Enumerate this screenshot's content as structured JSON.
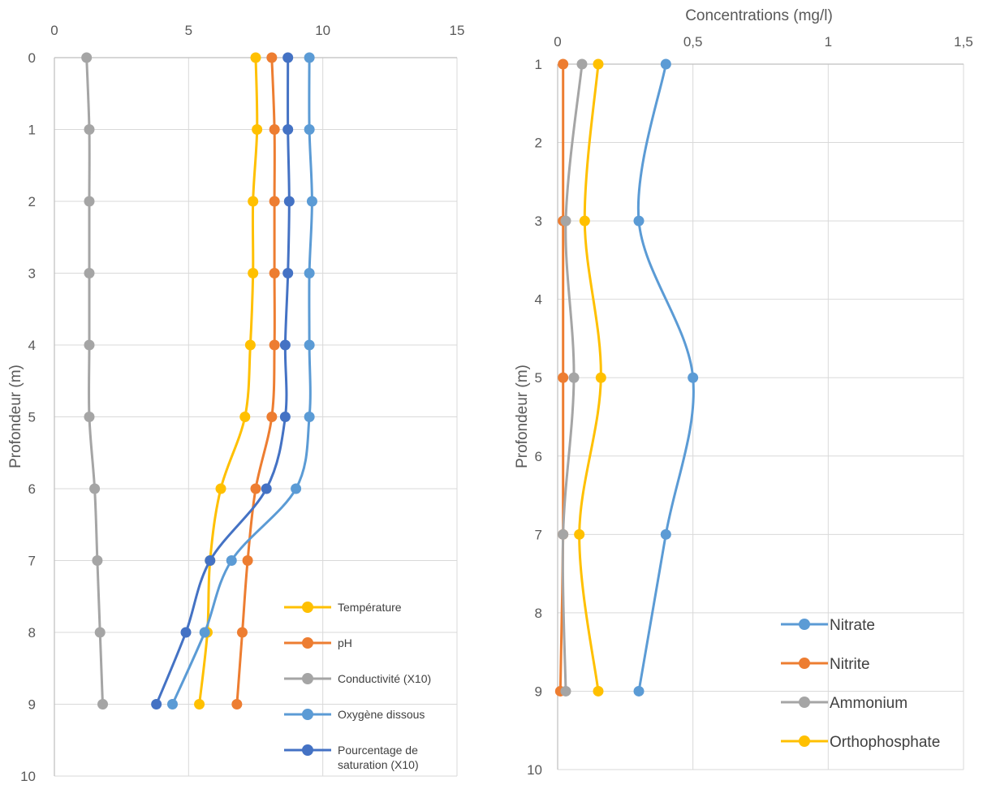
{
  "chart_data": [
    {
      "type": "line",
      "title": "",
      "xlabel": "",
      "ylabel": "Profondeur (m)",
      "xlim": [
        0,
        15
      ],
      "ylim": [
        0,
        10
      ],
      "y_reversed": true,
      "x_axis_position": "top",
      "x_ticks": [
        "0",
        "5",
        "10",
        "15"
      ],
      "y_ticks": [
        "0",
        "1",
        "2",
        "3",
        "4",
        "5",
        "6",
        "7",
        "8",
        "9",
        "10"
      ],
      "grid": true,
      "smooth": true,
      "legend_position": "bottom-right",
      "series": [
        {
          "name": "Température",
          "color": "#FFC000",
          "x": [
            7.5,
            7.55,
            7.4,
            7.4,
            7.3,
            7.1,
            6.2,
            5.8,
            5.7,
            5.4
          ],
          "y": [
            0,
            1,
            2,
            3,
            4,
            5,
            6,
            7,
            8,
            9
          ]
        },
        {
          "name": "pH",
          "color": "#ED7D31",
          "x": [
            8.1,
            8.2,
            8.2,
            8.2,
            8.2,
            8.1,
            7.5,
            7.2,
            7.0,
            6.8
          ],
          "y": [
            0,
            1,
            2,
            3,
            4,
            5,
            6,
            7,
            8,
            9
          ]
        },
        {
          "name": "Conductivité (X10)",
          "color": "#A5A5A5",
          "x": [
            1.2,
            1.3,
            1.3,
            1.3,
            1.3,
            1.3,
            1.5,
            1.6,
            1.7,
            1.8
          ],
          "y": [
            0,
            1,
            2,
            3,
            4,
            5,
            6,
            7,
            8,
            9
          ]
        },
        {
          "name": "Oxygène dissous",
          "color": "#5B9BD5",
          "x": [
            9.5,
            9.5,
            9.6,
            9.5,
            9.5,
            9.5,
            9.0,
            6.6,
            5.6,
            4.4
          ],
          "y": [
            0,
            1,
            2,
            3,
            4,
            5,
            6,
            7,
            8,
            9
          ]
        },
        {
          "name": "Pourcentage de saturation (X10)",
          "name_lines": [
            "Pourcentage de",
            "saturation (X10)"
          ],
          "color": "#4472C4",
          "x": [
            8.7,
            8.7,
            8.75,
            8.7,
            8.6,
            8.6,
            7.9,
            5.8,
            4.9,
            3.8
          ],
          "y": [
            0,
            1,
            2,
            3,
            4,
            5,
            6,
            7,
            8,
            9
          ]
        }
      ]
    },
    {
      "type": "line",
      "title": "",
      "xlabel": "Concentrations (mg/l)",
      "ylabel": "Profondeur (m)",
      "xlim": [
        0,
        1.5
      ],
      "ylim": [
        1,
        10
      ],
      "y_reversed": true,
      "x_axis_position": "top",
      "x_ticks": [
        "0",
        "0,5",
        "1",
        "1,5"
      ],
      "y_ticks": [
        "1",
        "2",
        "3",
        "4",
        "5",
        "6",
        "7",
        "8",
        "9",
        "10"
      ],
      "grid": true,
      "smooth": true,
      "legend_position": "bottom-right",
      "series": [
        {
          "name": "Nitrate",
          "color": "#5B9BD5",
          "x": [
            0.4,
            0.3,
            0.5,
            0.4,
            0.3
          ],
          "y": [
            1,
            3,
            5,
            7,
            9
          ]
        },
        {
          "name": "Nitrite",
          "color": "#ED7D31",
          "x": [
            0.02,
            0.02,
            0.02,
            0.02,
            0.01
          ],
          "y": [
            1,
            3,
            5,
            7,
            9
          ]
        },
        {
          "name": "Ammonium",
          "color": "#A5A5A5",
          "x": [
            0.09,
            0.03,
            0.06,
            0.02,
            0.03
          ],
          "y": [
            1,
            3,
            5,
            7,
            9
          ]
        },
        {
          "name": "Orthophosphate",
          "color": "#FFC000",
          "x": [
            0.15,
            0.1,
            0.16,
            0.08,
            0.15
          ],
          "y": [
            1,
            3,
            5,
            7,
            9
          ]
        }
      ]
    }
  ]
}
